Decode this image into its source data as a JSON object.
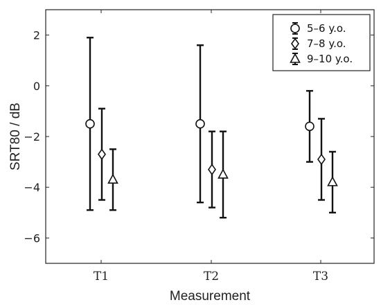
{
  "chart_data": {
    "type": "scatter",
    "title": "",
    "xlabel": "Measurement",
    "ylabel": "SRT80 / dB",
    "categories": [
      "T1",
      "T2",
      "T3"
    ],
    "ylim": [
      -7,
      3
    ],
    "yticks": [
      2,
      0,
      -2,
      -4,
      -6
    ],
    "ytick_labels": [
      "2",
      "0",
      "−2",
      "−4",
      "−6"
    ],
    "grid": false,
    "legend_position": "top-right",
    "series": [
      {
        "name": "5–6 y.o.",
        "marker": "circle",
        "values": [
          -1.5,
          -1.5,
          -1.6
        ],
        "lower": [
          -4.9,
          -4.6,
          -3.0
        ],
        "upper": [
          1.9,
          1.6,
          -0.2
        ]
      },
      {
        "name": "7–8 y.o.",
        "marker": "diamond",
        "values": [
          -2.7,
          -3.3,
          -2.9
        ],
        "lower": [
          -4.5,
          -4.8,
          -4.5
        ],
        "upper": [
          -0.9,
          -1.8,
          -1.3
        ]
      },
      {
        "name": "9–10 y.o.",
        "marker": "triangle",
        "values": [
          -3.7,
          -3.5,
          -3.8
        ],
        "lower": [
          -4.9,
          -5.2,
          -5.0
        ],
        "upper": [
          -2.5,
          -1.8,
          -2.6
        ]
      }
    ]
  }
}
